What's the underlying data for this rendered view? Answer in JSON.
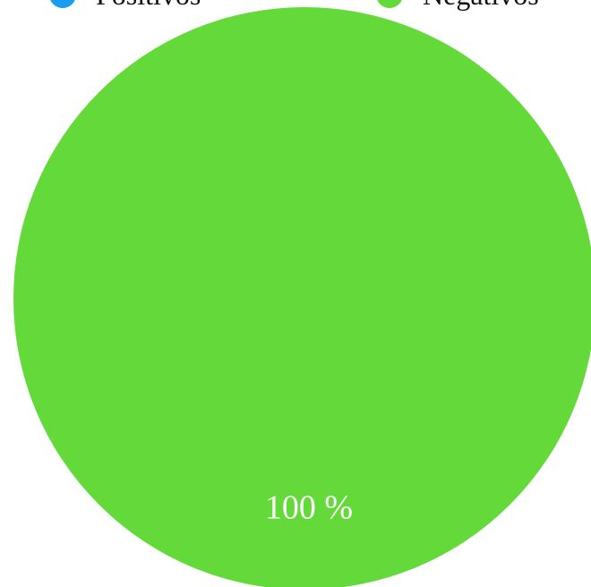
{
  "chart_data": {
    "type": "pie",
    "categories": [
      "Positivos",
      "Negativos"
    ],
    "values": [
      0,
      100
    ],
    "colors": [
      "#1a9cf0",
      "#64d93a"
    ],
    "data_labels": [
      "",
      "100 %"
    ],
    "legend_position": "top"
  },
  "legend": {
    "items": [
      {
        "label": "Positivos",
        "color": "#1a9cf0"
      },
      {
        "label": "Negativos",
        "color": "#64d93a"
      }
    ]
  }
}
